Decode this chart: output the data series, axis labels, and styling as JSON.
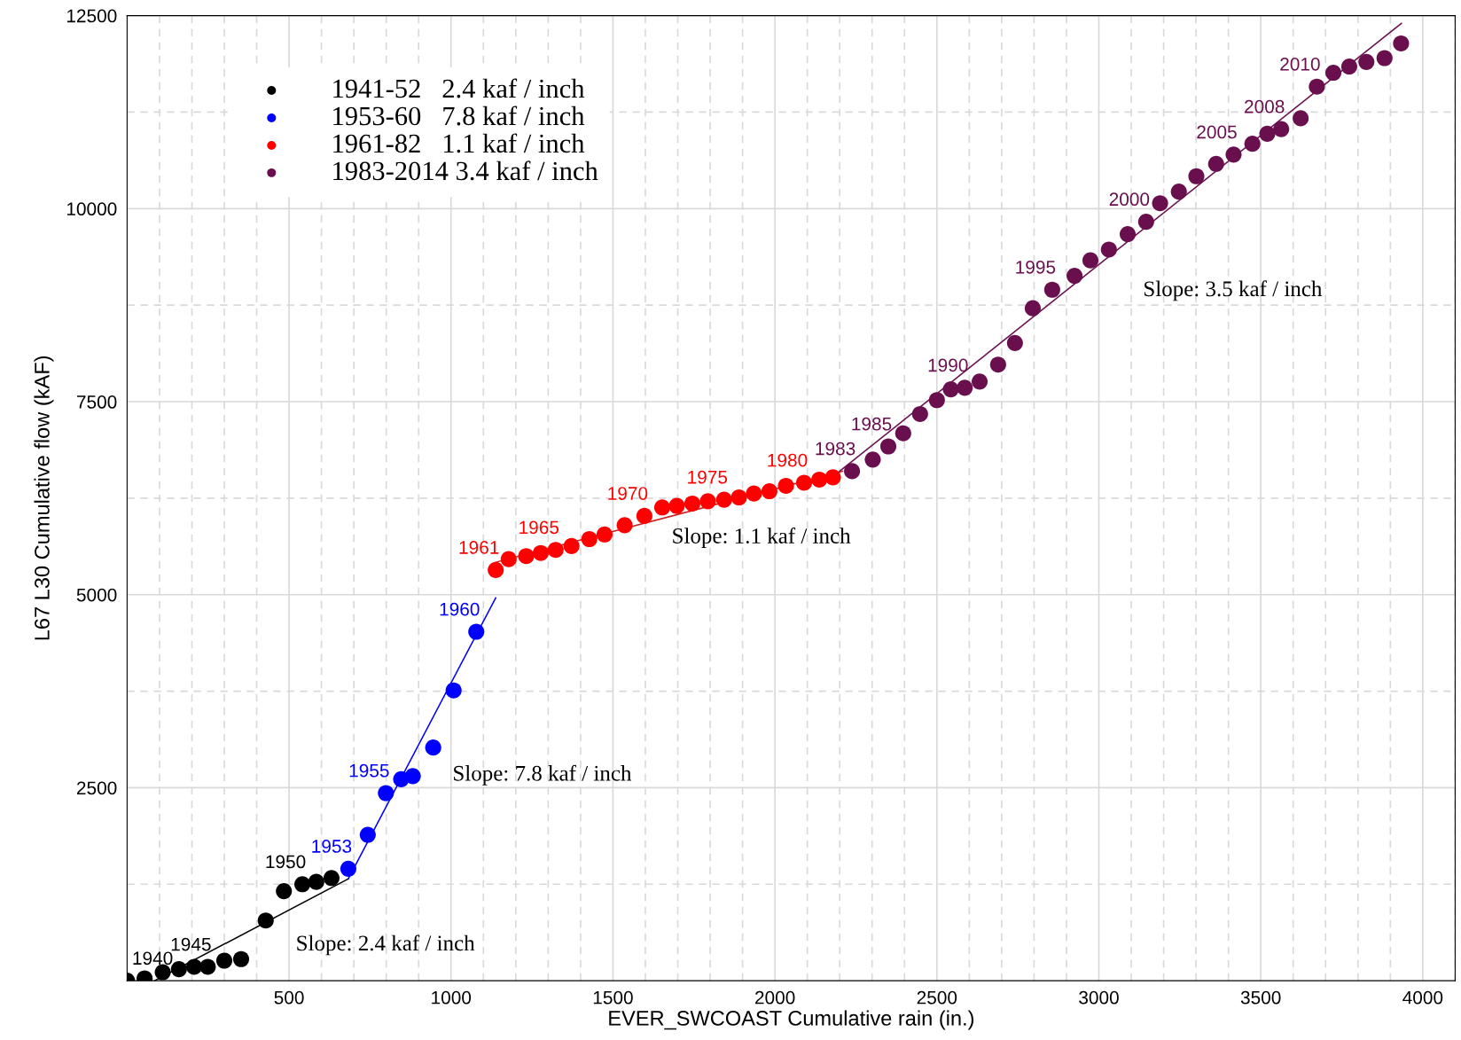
{
  "chart_data": {
    "type": "scatter",
    "xlabel": "EVER_SWCOAST Cumulative rain (in.)",
    "ylabel": "L67 L30 Cumulative flow (kAF)",
    "xlim": [
      0,
      4100
    ],
    "ylim": [
      0,
      12500
    ],
    "xticks": [
      {
        "value": 100,
        "label": null
      },
      {
        "value": 200,
        "label": null
      },
      {
        "value": 300,
        "label": null
      },
      {
        "value": 400,
        "label": null
      },
      500,
      {
        "value": 600,
        "label": null
      },
      {
        "value": 700,
        "label": null
      },
      {
        "value": 800,
        "label": null
      },
      {
        "value": 900,
        "label": null
      },
      1000,
      {
        "value": 1100,
        "label": null
      },
      {
        "value": 1200,
        "label": null
      },
      {
        "value": 1300,
        "label": null
      },
      {
        "value": 1400,
        "label": null
      },
      1500,
      {
        "value": 1600,
        "label": null
      },
      {
        "value": 1700,
        "label": null
      },
      {
        "value": 1800,
        "label": null
      },
      {
        "value": 1900,
        "label": null
      },
      2000,
      {
        "value": 2100,
        "label": null
      },
      {
        "value": 2200,
        "label": null
      },
      {
        "value": 2300,
        "label": null
      },
      {
        "value": 2400,
        "label": null
      },
      2500,
      {
        "value": 2600,
        "label": null
      },
      {
        "value": 2700,
        "label": null
      },
      {
        "value": 2800,
        "label": null
      },
      {
        "value": 2900,
        "label": null
      },
      3000,
      {
        "value": 3100,
        "label": null
      },
      {
        "value": 3200,
        "label": null
      },
      {
        "value": 3300,
        "label": null
      },
      {
        "value": 3400,
        "label": null
      },
      3500,
      {
        "value": 3600,
        "label": null
      },
      {
        "value": 3700,
        "label": null
      },
      {
        "value": 3800,
        "label": null
      },
      {
        "value": 3900,
        "label": null
      },
      4000,
      {
        "value": 4100,
        "label": null
      }
    ],
    "yticks": [
      {
        "value": 1250,
        "label": null
      },
      2500,
      {
        "value": 3750,
        "label": null
      },
      5000,
      {
        "value": 6250,
        "label": null
      },
      7500,
      {
        "value": 8750,
        "label": null
      },
      10000,
      {
        "value": 11250,
        "label": null
      },
      12500
    ],
    "grid": true,
    "legend": "top left",
    "marker": "circle",
    "series": [
      {
        "name": "1941-52   2.4 kaf / inch",
        "color": "#000000",
        "x": [
          0,
          54,
          110,
          160,
          207,
          249,
          300,
          352,
          428,
          484,
          541,
          584,
          631
        ],
        "values": [
          0,
          30,
          110,
          150,
          180,
          180,
          260,
          280,
          780,
          1160,
          1250,
          1280,
          1330
        ]
      },
      {
        "name": "1953-60   7.8 kaf / inch",
        "color": "#0000ff",
        "x": [
          683,
          743,
          799,
          846,
          882,
          945,
          1008,
          1078
        ],
        "values": [
          1450,
          1890,
          2430,
          2610,
          2650,
          3020,
          3760,
          4520
        ]
      },
      {
        "name": "1961-82   1.1 kaf / inch",
        "color": "#ff0000",
        "x": [
          1138,
          1178,
          1232,
          1277,
          1323,
          1372,
          1427,
          1474,
          1536,
          1597,
          1652,
          1697,
          1745,
          1793,
          1843,
          1889,
          1935,
          1983,
          2034,
          2090,
          2137,
          2179
        ],
        "values": [
          5320,
          5460,
          5500,
          5540,
          5580,
          5630,
          5720,
          5780,
          5900,
          6020,
          6130,
          6150,
          6180,
          6210,
          6230,
          6260,
          6310,
          6340,
          6410,
          6450,
          6490,
          6520
        ]
      },
      {
        "name": "1983-2014 3.4 kaf / inch",
        "color": "#6a0f4e",
        "x": [
          2238,
          2302,
          2350,
          2396,
          2448,
          2500,
          2543,
          2586,
          2632,
          2689,
          2741,
          2796,
          2856,
          2925,
          2974,
          3031,
          3089,
          3146,
          3189,
          3247,
          3301,
          3362,
          3416,
          3474,
          3520,
          3563,
          3623,
          3673,
          3724,
          3773,
          3826,
          3882,
          3933
        ],
        "values": [
          6600,
          6750,
          6920,
          7090,
          7340,
          7520,
          7660,
          7680,
          7760,
          7980,
          8260,
          8710,
          8950,
          9130,
          9330,
          9470,
          9670,
          9830,
          10070,
          10220,
          10420,
          10580,
          10700,
          10840,
          10970,
          11030,
          11170,
          11580,
          11760,
          11840,
          11900,
          11950,
          12140
        ]
      },
      {
        "type": "line",
        "marker": "none",
        "color": "#000000",
        "x": [
          85,
          683
        ],
        "values": [
          0,
          1320
        ]
      },
      {
        "type": "line",
        "marker": "none",
        "color": "#0000ff",
        "x": [
          683,
          1138
        ],
        "values": [
          1320,
          4960
        ]
      },
      {
        "type": "line",
        "marker": "none",
        "color": "#cc2020",
        "x": [
          1138,
          2209
        ],
        "values": [
          5420,
          6600
        ]
      },
      {
        "type": "line",
        "marker": "none",
        "color": "#6a0f4e",
        "x": [
          2200,
          3934
        ],
        "values": [
          6600,
          12400
        ]
      }
    ],
    "annotations": [
      "Slope: 2.4 kaf / inch",
      "Slope: 7.8 kaf / inch",
      "Slope: 1.1 kaf / inch",
      "Slope: 3.5 kaf / inch",
      {
        "text": "1940",
        "x": 0,
        "y": 0
      },
      {
        "text": "1945",
        "x": 249,
        "y": 180
      },
      {
        "text": "1950",
        "x": 541,
        "y": 1250
      },
      {
        "text": "1953",
        "x": 683,
        "y": 1450
      },
      {
        "text": "1955",
        "x": 799,
        "y": 2430
      },
      {
        "text": "1960",
        "x": 1078,
        "y": 4520
      },
      {
        "text": "1961",
        "x": 1138,
        "y": 5320
      },
      {
        "text": "1965",
        "x": 1323,
        "y": 5580
      },
      {
        "text": "1970",
        "x": 1597,
        "y": 6020
      },
      {
        "text": "1975",
        "x": 1843,
        "y": 6230
      },
      {
        "text": "1980",
        "x": 2090,
        "y": 6450
      },
      {
        "text": "1983",
        "x": 2238,
        "y": 6600
      },
      {
        "text": "1985",
        "x": 2350,
        "y": 6920
      },
      {
        "text": "1990",
        "x": 2586,
        "y": 7680
      },
      {
        "text": "1995",
        "x": 2856,
        "y": 8950
      },
      {
        "text": "2000",
        "x": 3146,
        "y": 9830
      },
      {
        "text": "2005",
        "x": 3416,
        "y": 10700
      },
      {
        "text": "2008",
        "x": 3563,
        "y": 11030
      },
      {
        "text": "2010",
        "x": 3673,
        "y": 11580
      }
    ]
  }
}
